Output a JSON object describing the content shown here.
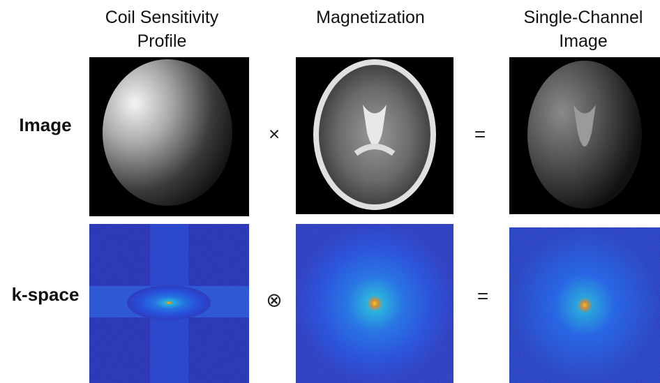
{
  "columns": [
    {
      "lines": [
        "Coil Sensitivity",
        "Profile"
      ]
    },
    {
      "lines": [
        "Magnetization"
      ]
    },
    {
      "lines": [
        "Single-Channel",
        "Image"
      ]
    }
  ],
  "rows": [
    {
      "label": "Image",
      "operators": [
        "×",
        "="
      ]
    },
    {
      "label": "k-space",
      "operators": [
        "⊗",
        "="
      ]
    }
  ]
}
